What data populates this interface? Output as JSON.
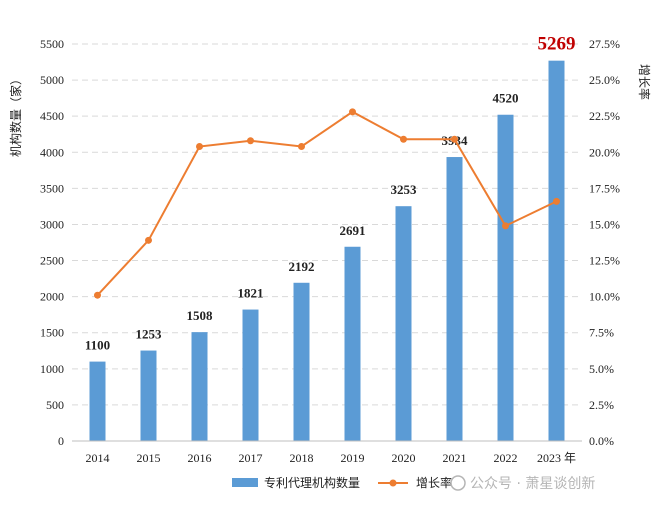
{
  "chart_data": {
    "type": "bar",
    "categories": [
      "2014",
      "2015",
      "2016",
      "2017",
      "2018",
      "2019",
      "2020",
      "2021",
      "2022",
      "2023 年"
    ],
    "series": [
      {
        "name": "专利代理机构数量",
        "type": "bar",
        "axis": "left",
        "color": "#5b9bd5",
        "values": [
          1100,
          1253,
          1508,
          1821,
          2192,
          2691,
          3253,
          3934,
          4520,
          5269
        ],
        "labels": [
          "1100",
          "1253",
          "1508",
          "1821",
          "2192",
          "2691",
          "3253",
          "3934",
          "4520",
          "5269"
        ]
      },
      {
        "name": "增长率",
        "type": "line",
        "axis": "right",
        "color": "#ed7d31",
        "values": [
          10.1,
          13.9,
          20.4,
          20.8,
          20.4,
          22.8,
          20.9,
          20.9,
          14.9,
          16.6
        ]
      }
    ],
    "ylabel": "机构数量（家）",
    "y2label": "增长率",
    "ylim": [
      0,
      5500
    ],
    "y2lim": [
      0,
      27.5
    ],
    "yticks": [
      "0",
      "500",
      "1000",
      "1500",
      "2000",
      "2500",
      "3000",
      "3500",
      "4000",
      "4500",
      "5000",
      "5500"
    ],
    "y2ticks": [
      "0.0%",
      "2.5%",
      "5.0%",
      "7.5%",
      "10.0%",
      "12.5%",
      "15.0%",
      "17.5%",
      "20.0%",
      "22.5%",
      "25.0%",
      "27.5%"
    ],
    "highlight_color": "#c00000",
    "grid": true,
    "legend": "bottom"
  },
  "watermark": {
    "text": "公众号 · 萧星谈创新"
  }
}
